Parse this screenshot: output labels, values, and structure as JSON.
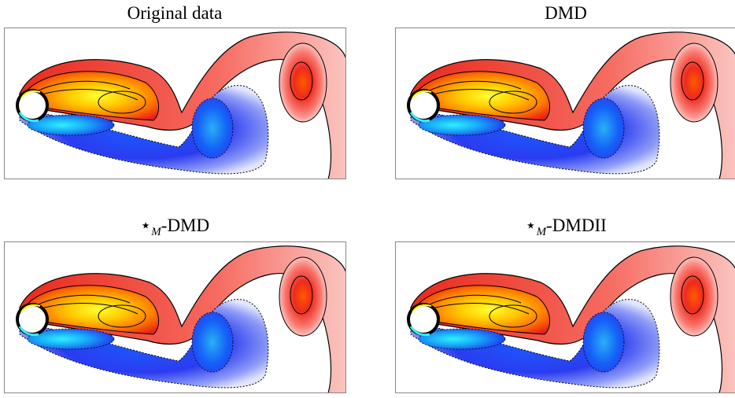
{
  "panels": [
    {
      "title": {
        "text": "Original data"
      }
    },
    {
      "title": {
        "text": "DMD"
      }
    },
    {
      "title": {
        "prefix": "⋆",
        "subscript": "M",
        "suffix": "-DMD"
      }
    },
    {
      "title": {
        "prefix": "⋆",
        "subscript": "M",
        "suffix": "-DMDII"
      }
    }
  ]
}
